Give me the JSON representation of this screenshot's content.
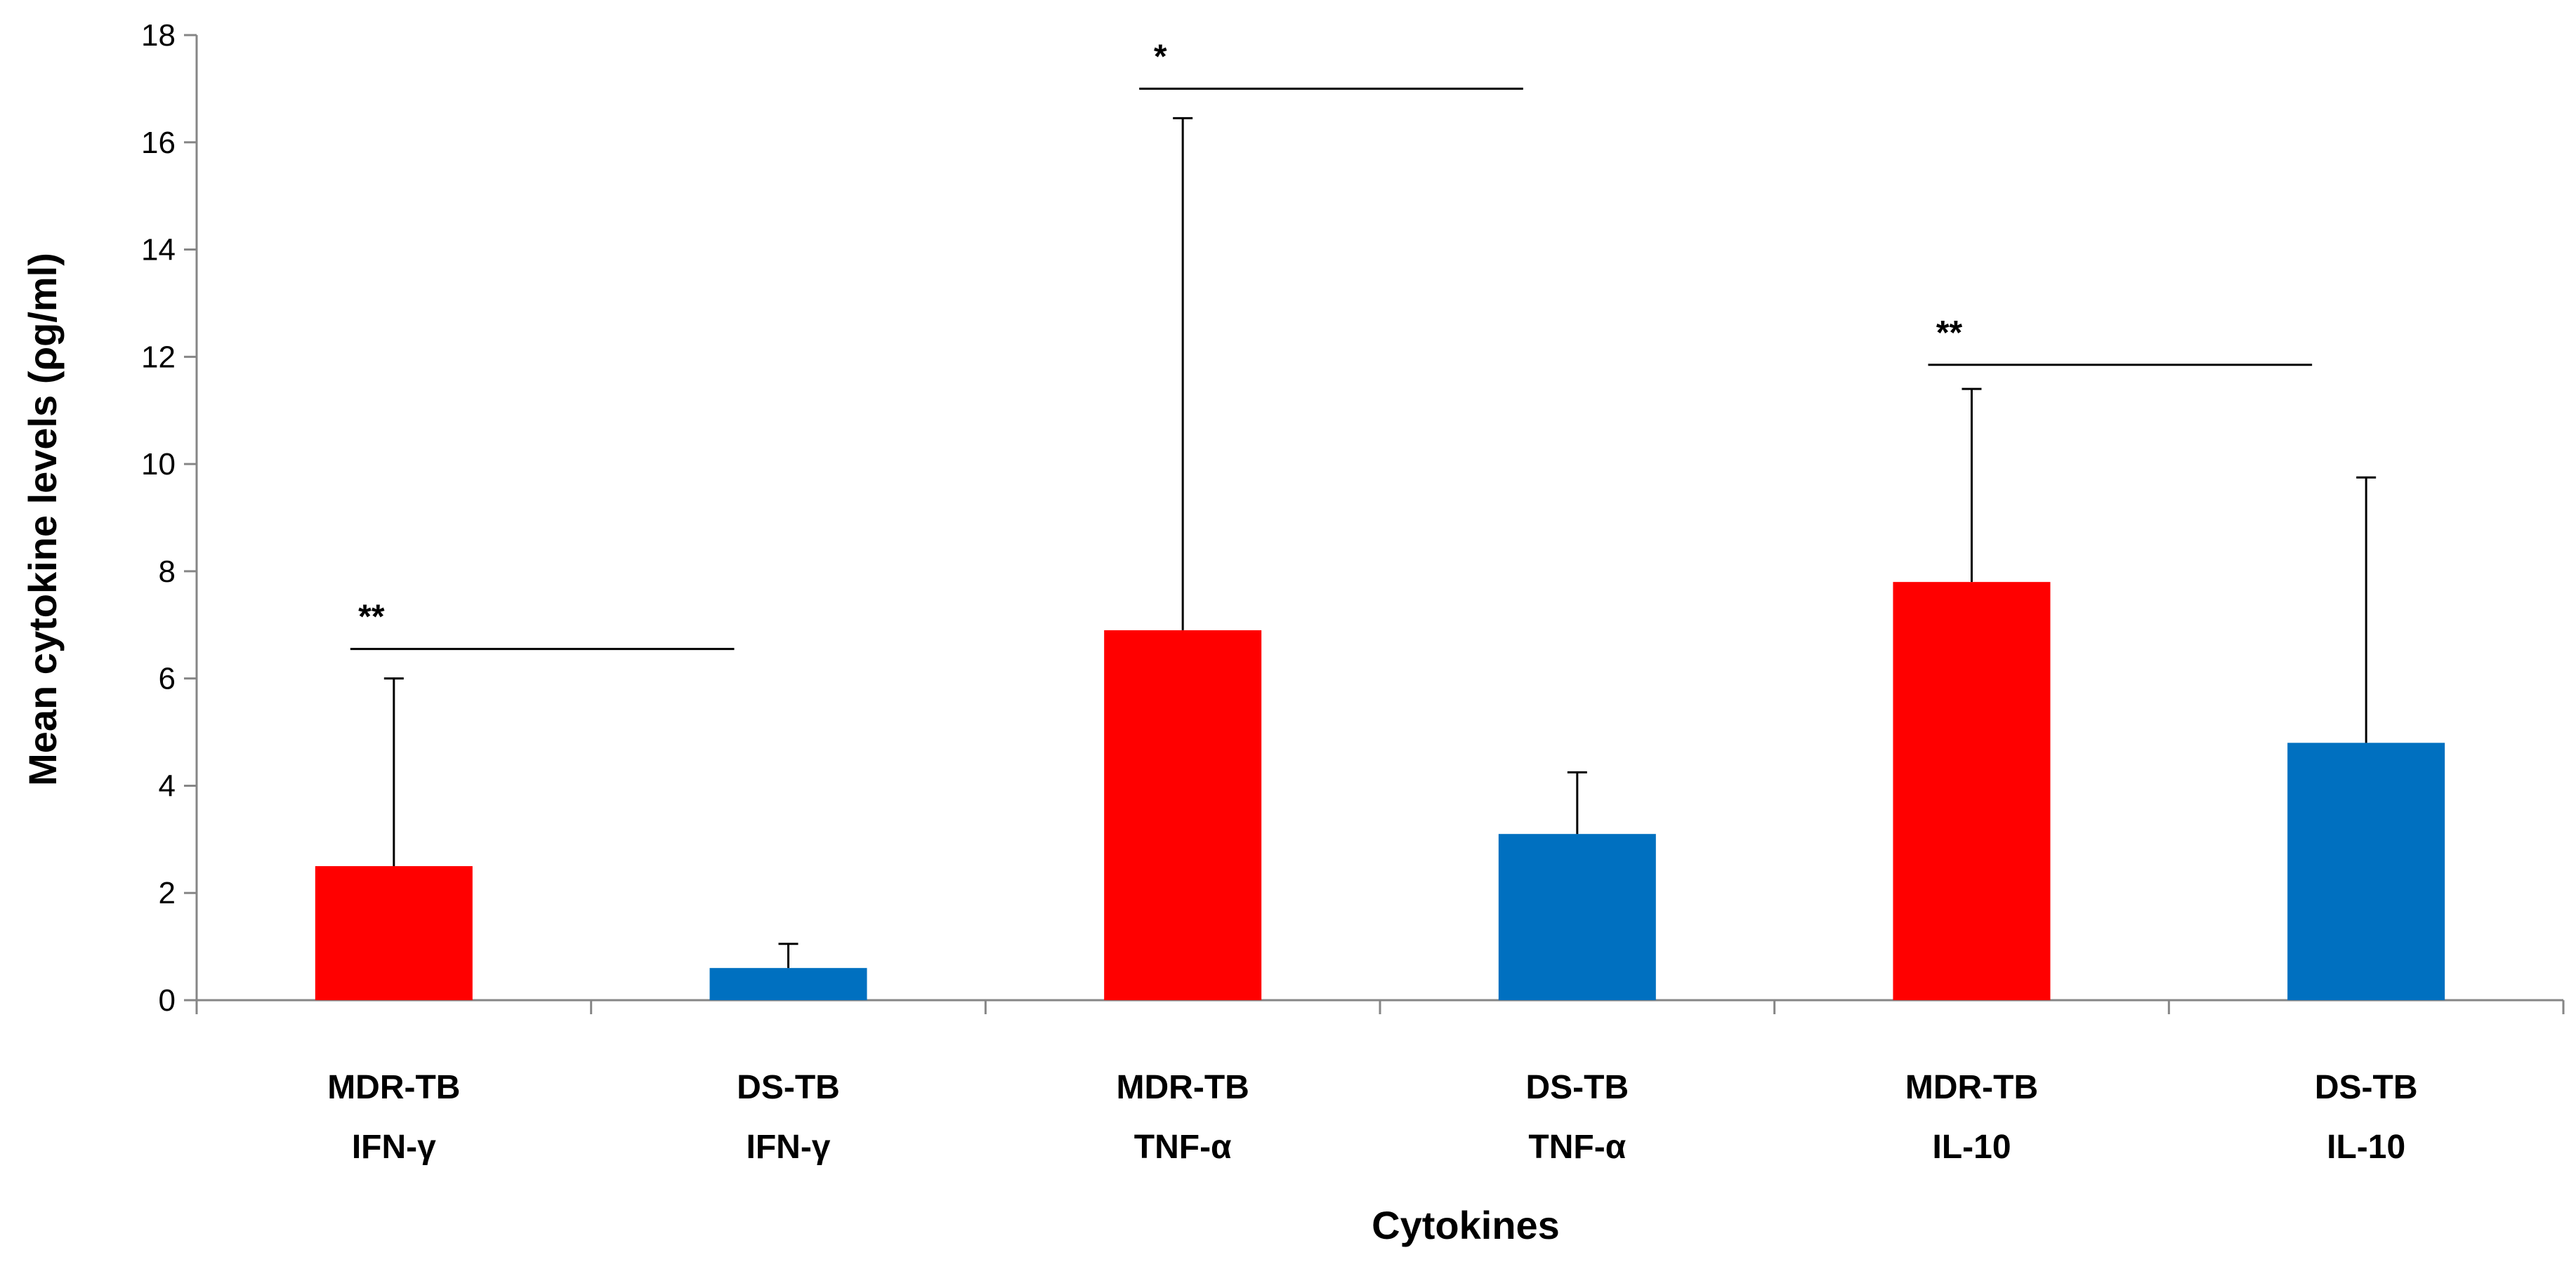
{
  "chart_data": {
    "type": "bar",
    "title": "",
    "xlabel": "Cytokines",
    "ylabel": "Mean cytokine levels (ρg/ml)",
    "ylim": [
      0,
      18
    ],
    "yticks": [
      0,
      2,
      4,
      6,
      8,
      10,
      12,
      14,
      16,
      18
    ],
    "grid": false,
    "legend": "none",
    "categories": [
      {
        "group": "MDR-TB",
        "cytokine": "IFN-γ"
      },
      {
        "group": "DS-TB",
        "cytokine": "IFN-γ"
      },
      {
        "group": "MDR-TB",
        "cytokine": "TNF-α"
      },
      {
        "group": "DS-TB",
        "cytokine": "TNF-α"
      },
      {
        "group": "MDR-TB",
        "cytokine": "IL-10"
      },
      {
        "group": "DS-TB",
        "cytokine": "IL-10"
      }
    ],
    "values": [
      2.5,
      0.6,
      6.9,
      3.1,
      7.8,
      4.8
    ],
    "error_upper": [
      6.0,
      1.05,
      16.45,
      4.25,
      11.4,
      9.75
    ],
    "colors": [
      "#FF0000",
      "#0070C0",
      "#FF0000",
      "#0070C0",
      "#FF0000",
      "#0070C0"
    ],
    "significance": [
      {
        "label": "**",
        "from": 0,
        "to": 1,
        "y": 6.55
      },
      {
        "label": "*",
        "from": 2,
        "to": 3,
        "y": 17.0
      },
      {
        "label": "**",
        "from": 4,
        "to": 5,
        "y": 11.85
      }
    ]
  }
}
